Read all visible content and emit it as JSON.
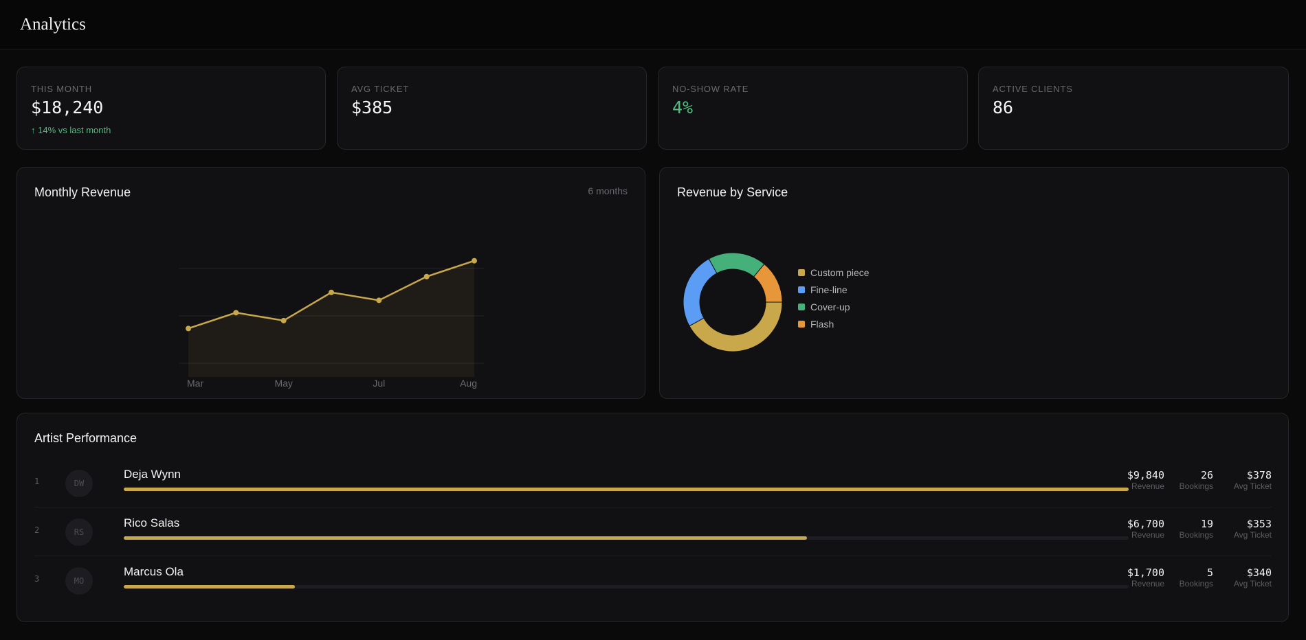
{
  "header": {
    "title": "Analytics"
  },
  "stats": [
    {
      "label": "THIS MONTH",
      "value": "$18,240",
      "delta": "↑ 14% vs last month"
    },
    {
      "label": "AVG TICKET",
      "value": "$385"
    },
    {
      "label": "NO-SHOW RATE",
      "value": "4%"
    },
    {
      "label": "ACTIVE CLIENTS",
      "value": "86"
    }
  ],
  "revenue_panel": {
    "title": "Monthly Revenue",
    "note": "6 months"
  },
  "service_panel": {
    "title": "Revenue by Service"
  },
  "colors": {
    "accent": "#c8a84a",
    "positive": "#4fbf7f",
    "blue": "#5b9cf5",
    "orange": "#e8963a",
    "green": "#45b07a"
  },
  "chart_data": [
    {
      "type": "area",
      "x_tick_labels": [
        "Mar",
        "May",
        "Jul",
        "Aug"
      ],
      "points_count": 7,
      "values": [
        8700,
        11900,
        10300,
        16000,
        14400,
        19200,
        22400
      ],
      "ylim": [
        0,
        25000
      ],
      "grid": true
    },
    {
      "type": "pie",
      "series": [
        {
          "name": "Custom piece",
          "value": 0.42,
          "color": "#c8a84a"
        },
        {
          "name": "Fine-line",
          "value": 0.25,
          "color": "#5b9cf5"
        },
        {
          "name": "Cover-up",
          "value": 0.19,
          "color": "#45b07a"
        },
        {
          "name": "Flash",
          "value": 0.14,
          "color": "#e8963a"
        }
      ]
    }
  ],
  "artists_panel": {
    "title": "Artist Performance",
    "metric_labels": {
      "revenue": "Revenue",
      "bookings": "Bookings",
      "avg": "Avg Ticket"
    },
    "rows": [
      {
        "rank": "1",
        "initials": "DW",
        "name": "Deja Wynn",
        "revenue": "$9,840",
        "bookings": "26",
        "avg": "$378",
        "share": 1.0
      },
      {
        "rank": "2",
        "initials": "RS",
        "name": "Rico Salas",
        "revenue": "$6,700",
        "bookings": "19",
        "avg": "$353",
        "share": 0.68
      },
      {
        "rank": "3",
        "initials": "MO",
        "name": "Marcus Ola",
        "revenue": "$1,700",
        "bookings": "5",
        "avg": "$340",
        "share": 0.17
      }
    ]
  }
}
